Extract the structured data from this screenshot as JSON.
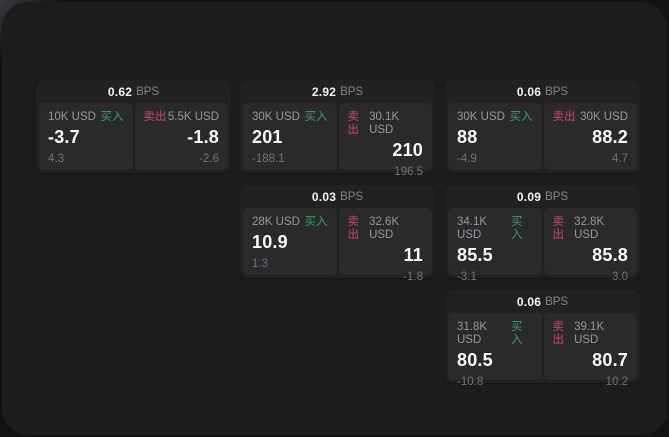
{
  "colors": {
    "buy_green": "#3da05f",
    "sell_red": "#ca4a62",
    "panel_bg": "#1c1c1e",
    "card_bg": "#212123",
    "cell_bg": "#2a2a2c"
  },
  "labels": {
    "buy": "买入",
    "sell": "卖出",
    "bps_unit": "BPS"
  },
  "cards": [
    {
      "col": 1,
      "row": 1,
      "bps": "0.62",
      "buy": {
        "notional": "10K USD",
        "price": "-3.7",
        "delta": "4.3"
      },
      "sell": {
        "notional": "5.5K USD",
        "price": "-1.8",
        "delta": "-2.6"
      }
    },
    {
      "col": 2,
      "row": 1,
      "bps": "2.92",
      "buy": {
        "notional": "30K USD",
        "price": "201",
        "delta": "-188.1"
      },
      "sell": {
        "notional": "30.1K USD",
        "price": "210",
        "delta": "196.5"
      }
    },
    {
      "col": 3,
      "row": 1,
      "bps": "0.06",
      "buy": {
        "notional": "30K USD",
        "price": "88",
        "delta": "-4.9"
      },
      "sell": {
        "notional": "30K USD",
        "price": "88.2",
        "delta": "4.7"
      }
    },
    {
      "col": 2,
      "row": 2,
      "bps": "0.03",
      "buy": {
        "notional": "28K USD",
        "price": "10.9",
        "delta": "1.3"
      },
      "sell": {
        "notional": "32.6K USD",
        "price": "11",
        "delta": "-1.8"
      }
    },
    {
      "col": 3,
      "row": 2,
      "bps": "0.09",
      "buy": {
        "notional": "34.1K USD",
        "price": "85.5",
        "delta": "-3.1"
      },
      "sell": {
        "notional": "32.8K USD",
        "price": "85.8",
        "delta": "3.0"
      }
    },
    {
      "col": 3,
      "row": 3,
      "bps": "0.06",
      "buy": {
        "notional": "31.8K USD",
        "price": "80.5",
        "delta": "-10.8"
      },
      "sell": {
        "notional": "39.1K USD",
        "price": "80.7",
        "delta": "10.2"
      }
    }
  ]
}
